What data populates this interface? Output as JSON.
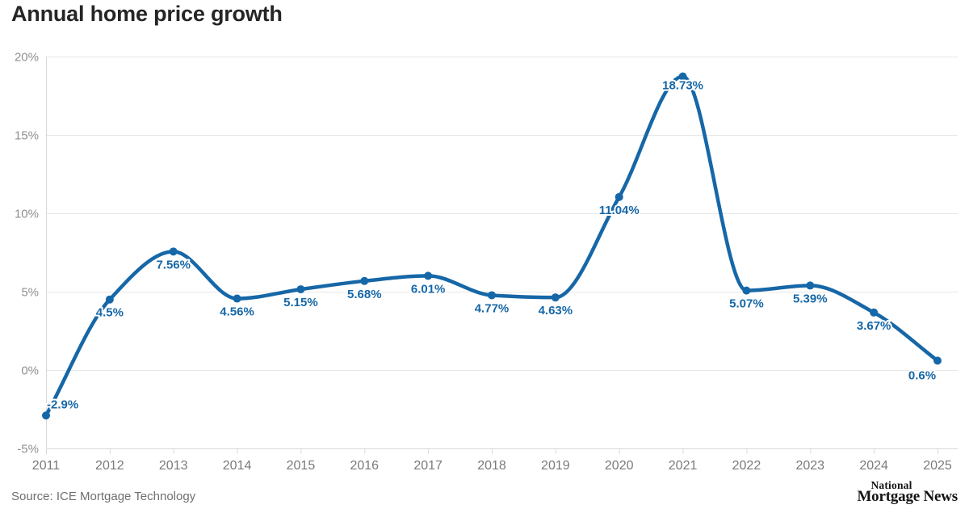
{
  "header": {
    "title": "Annual home price growth"
  },
  "footer": {
    "source": "Source: ICE Mortgage Technology",
    "logo": {
      "line1": "National",
      "line2": "Mortgage News"
    }
  },
  "colors": {
    "line": "#1667a7",
    "point_label": "#1667a7",
    "marker": "#1667a7",
    "grid": "#e7e7e7",
    "axis_line": "#d9d9d9",
    "y_axis_text": "#8f8f8f",
    "x_axis_text": "#7a7a7a",
    "title_text": "#252525",
    "source_text": "#6f6f6f",
    "logo_text": "#141414",
    "background": "#ffffff"
  },
  "chart_data": {
    "type": "line",
    "title": "Annual home price growth",
    "x": [
      2011,
      2012,
      2013,
      2014,
      2015,
      2016,
      2017,
      2018,
      2019,
      2020,
      2021,
      2022,
      2023,
      2024,
      2025
    ],
    "series": [
      {
        "name": "Annual home price growth",
        "values": [
          -2.9,
          4.5,
          7.56,
          4.56,
          5.15,
          5.68,
          6.01,
          4.77,
          4.63,
          11.04,
          18.73,
          5.07,
          5.39,
          3.67,
          0.6
        ]
      }
    ],
    "point_labels": [
      "-2.9%",
      "4.5%",
      "7.56%",
      "4.56%",
      "5.15%",
      "5.68%",
      "6.01%",
      "4.77%",
      "4.63%",
      "11.04%",
      "18.73%",
      "5.07%",
      "5.39%",
      "3.67%",
      "0.6%"
    ],
    "y_ticks": [
      {
        "value": 20,
        "label": "20%"
      },
      {
        "value": 15,
        "label": "15%"
      },
      {
        "value": 10,
        "label": "10%"
      },
      {
        "value": 5,
        "label": "5%"
      },
      {
        "value": 0,
        "label": "0%"
      },
      {
        "value": -5,
        "label": "-5%"
      }
    ],
    "ylim": [
      -5,
      20
    ],
    "grid": "horizontal",
    "legend": "none",
    "curve": "monotone",
    "markers": true,
    "xlabel": "",
    "ylabel": ""
  }
}
